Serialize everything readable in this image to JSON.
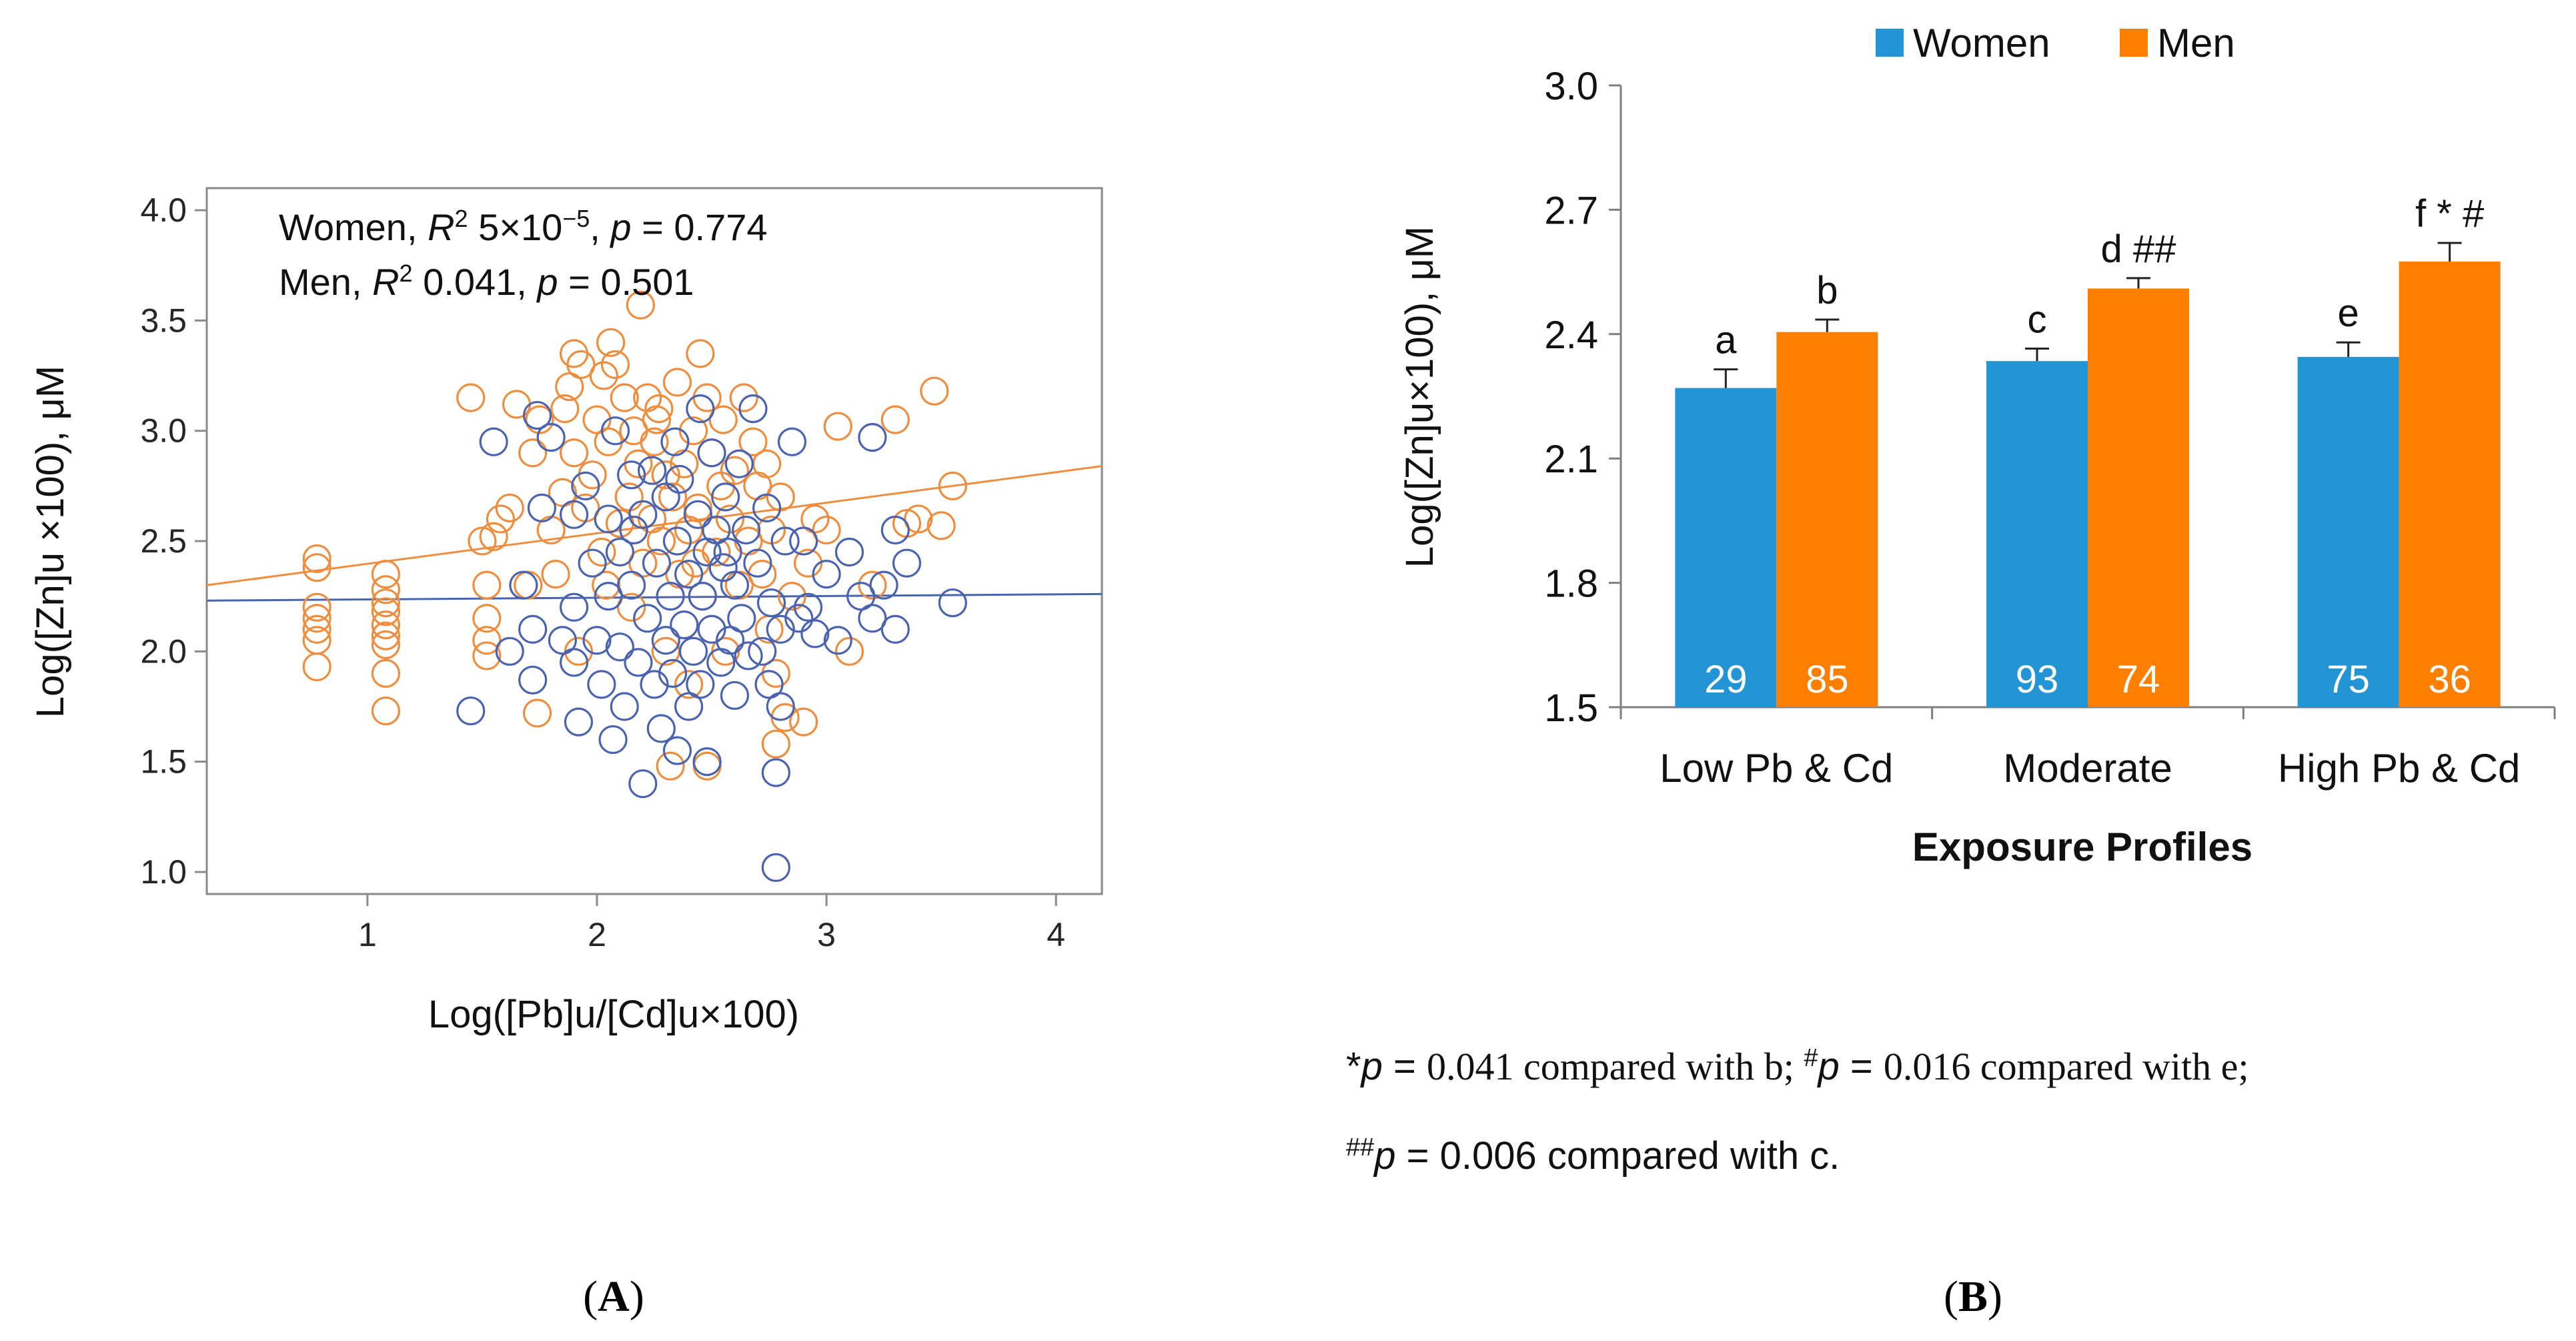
{
  "chart_data": [
    {
      "type": "scatter",
      "panel_label": "A",
      "xlabel": "Log([Pb]u/[Cd]u×100)",
      "ylabel": "Log([Zn]u ×100), μM",
      "xlim": [
        0.3,
        4.2
      ],
      "ylim": [
        0.9,
        4.1
      ],
      "xticks": [
        "1",
        "2",
        "3",
        "4"
      ],
      "yticks": [
        "1.0",
        "1.5",
        "2.0",
        "2.5",
        "3.0",
        "3.5",
        "4.0"
      ],
      "annotations": [
        {
          "group": "Women",
          "r2_label": "R",
          "r2_sup": "2",
          "r2_value": "5×10",
          "r2_exp": "−5",
          "p_label": "p",
          "p_value": "= 0.774"
        },
        {
          "group": "Men",
          "r2_label": "R",
          "r2_sup": "2",
          "r2_value": "0.041",
          "p_label": "p",
          "p_value": "= 0.501"
        }
      ],
      "series": [
        {
          "name": "Women",
          "color": "#4a63b0",
          "fit": {
            "x": [
              0.3,
              4.2
            ],
            "y": [
              2.23,
              2.26
            ]
          },
          "points": [
            [
              1.45,
              1.73
            ],
            [
              1.55,
              2.95
            ],
            [
              1.62,
              2.0
            ],
            [
              1.68,
              2.3
            ],
            [
              1.72,
              2.1
            ],
            [
              1.72,
              1.87
            ],
            [
              1.74,
              3.07
            ],
            [
              1.76,
              2.65
            ],
            [
              1.8,
              2.97
            ],
            [
              1.85,
              2.05
            ],
            [
              1.9,
              2.62
            ],
            [
              1.9,
              2.2
            ],
            [
              1.9,
              1.95
            ],
            [
              1.92,
              1.68
            ],
            [
              1.95,
              2.75
            ],
            [
              1.98,
              2.4
            ],
            [
              2.0,
              2.05
            ],
            [
              2.02,
              1.85
            ],
            [
              2.05,
              2.6
            ],
            [
              2.05,
              2.25
            ],
            [
              2.07,
              1.6
            ],
            [
              2.08,
              3.0
            ],
            [
              2.1,
              2.45
            ],
            [
              2.1,
              2.02
            ],
            [
              2.12,
              1.75
            ],
            [
              2.15,
              2.8
            ],
            [
              2.15,
              2.3
            ],
            [
              2.18,
              1.95
            ],
            [
              2.2,
              1.4
            ],
            [
              2.2,
              2.62
            ],
            [
              2.22,
              2.15
            ],
            [
              2.24,
              2.82
            ],
            [
              2.25,
              1.85
            ],
            [
              2.26,
              2.4
            ],
            [
              2.28,
              1.65
            ],
            [
              2.3,
              2.05
            ],
            [
              2.3,
              2.7
            ],
            [
              2.32,
              2.25
            ],
            [
              2.33,
              1.9
            ],
            [
              2.35,
              1.55
            ],
            [
              2.35,
              2.5
            ],
            [
              2.36,
              2.78
            ],
            [
              2.38,
              2.12
            ],
            [
              2.4,
              1.75
            ],
            [
              2.4,
              2.35
            ],
            [
              2.42,
              2.0
            ],
            [
              2.44,
              2.62
            ],
            [
              2.45,
              1.85
            ],
            [
              2.46,
              2.25
            ],
            [
              2.48,
              1.5
            ],
            [
              2.48,
              2.45
            ],
            [
              2.5,
              2.9
            ],
            [
              2.5,
              2.1
            ],
            [
              2.52,
              2.55
            ],
            [
              2.54,
              1.95
            ],
            [
              2.55,
              2.38
            ],
            [
              2.56,
              2.7
            ],
            [
              2.58,
              2.05
            ],
            [
              2.6,
              1.8
            ],
            [
              2.6,
              2.3
            ],
            [
              2.62,
              2.85
            ],
            [
              2.63,
              2.15
            ],
            [
              2.65,
              2.55
            ],
            [
              2.66,
              1.98
            ],
            [
              2.68,
              3.1
            ],
            [
              2.7,
              2.4
            ],
            [
              2.72,
              2.0
            ],
            [
              2.74,
              2.65
            ],
            [
              2.75,
              1.85
            ],
            [
              2.76,
              2.22
            ],
            [
              2.78,
              1.45
            ],
            [
              2.78,
              1.02
            ],
            [
              2.8,
              2.1
            ],
            [
              2.8,
              1.75
            ],
            [
              2.82,
              2.5
            ],
            [
              2.85,
              2.95
            ],
            [
              2.88,
              2.15
            ],
            [
              2.9,
              2.5
            ],
            [
              2.92,
              2.2
            ],
            [
              2.95,
              2.08
            ],
            [
              3.0,
              2.35
            ],
            [
              3.05,
              2.05
            ],
            [
              3.1,
              2.45
            ],
            [
              3.15,
              2.25
            ],
            [
              3.2,
              2.97
            ],
            [
              3.2,
              2.15
            ],
            [
              3.25,
              2.3
            ],
            [
              3.3,
              2.55
            ],
            [
              3.3,
              2.1
            ],
            [
              3.35,
              2.4
            ],
            [
              3.55,
              2.22
            ],
            [
              2.16,
              2.55
            ],
            [
              2.34,
              2.95
            ],
            [
              2.57,
              2.45
            ],
            [
              2.45,
              3.1
            ]
          ]
        },
        {
          "name": "Men",
          "color": "#ef8d3e",
          "fit": {
            "x": [
              0.3,
              4.2
            ],
            "y": [
              2.3,
              2.84
            ]
          },
          "points": [
            [
              0.78,
              2.42
            ],
            [
              0.78,
              2.38
            ],
            [
              0.78,
              2.2
            ],
            [
              0.78,
              2.15
            ],
            [
              0.78,
              2.1
            ],
            [
              0.78,
              2.05
            ],
            [
              0.78,
              1.93
            ],
            [
              1.08,
              2.35
            ],
            [
              1.08,
              2.28
            ],
            [
              1.08,
              2.22
            ],
            [
              1.08,
              2.18
            ],
            [
              1.08,
              2.12
            ],
            [
              1.08,
              2.07
            ],
            [
              1.08,
              2.03
            ],
            [
              1.08,
              1.9
            ],
            [
              1.08,
              1.73
            ],
            [
              1.45,
              3.15
            ],
            [
              1.5,
              2.5
            ],
            [
              1.52,
              2.3
            ],
            [
              1.52,
              2.15
            ],
            [
              1.52,
              2.05
            ],
            [
              1.52,
              1.98
            ],
            [
              1.55,
              2.52
            ],
            [
              1.58,
              2.6
            ],
            [
              1.62,
              2.65
            ],
            [
              1.65,
              3.12
            ],
            [
              1.7,
              2.3
            ],
            [
              1.72,
              2.9
            ],
            [
              1.74,
              1.72
            ],
            [
              1.75,
              3.05
            ],
            [
              1.8,
              2.55
            ],
            [
              1.82,
              2.35
            ],
            [
              1.85,
              2.72
            ],
            [
              1.86,
              3.1
            ],
            [
              1.88,
              3.2
            ],
            [
              1.9,
              3.35
            ],
            [
              1.9,
              2.9
            ],
            [
              1.92,
              2.0
            ],
            [
              1.93,
              3.3
            ],
            [
              1.95,
              2.65
            ],
            [
              1.98,
              2.8
            ],
            [
              2.0,
              3.05
            ],
            [
              2.02,
              2.45
            ],
            [
              2.04,
              2.3
            ],
            [
              2.05,
              2.95
            ],
            [
              2.06,
              3.4
            ],
            [
              2.08,
              3.3
            ],
            [
              2.1,
              2.58
            ],
            [
              2.12,
              3.15
            ],
            [
              2.14,
              2.7
            ],
            [
              2.15,
              2.2
            ],
            [
              2.16,
              3.0
            ],
            [
              2.18,
              2.85
            ],
            [
              2.19,
              3.57
            ],
            [
              2.2,
              2.4
            ],
            [
              2.22,
              3.15
            ],
            [
              2.24,
              2.6
            ],
            [
              2.25,
              2.95
            ],
            [
              2.26,
              3.05
            ],
            [
              2.28,
              2.5
            ],
            [
              2.3,
              2.8
            ],
            [
              2.3,
              2.0
            ],
            [
              2.32,
              1.48
            ],
            [
              2.33,
              2.7
            ],
            [
              2.35,
              3.22
            ],
            [
              2.36,
              2.35
            ],
            [
              2.38,
              2.85
            ],
            [
              2.4,
              2.55
            ],
            [
              2.4,
              1.85
            ],
            [
              2.42,
              3.0
            ],
            [
              2.44,
              2.65
            ],
            [
              2.45,
              3.35
            ],
            [
              2.46,
              2.25
            ],
            [
              2.48,
              1.48
            ],
            [
              2.48,
              3.15
            ],
            [
              2.5,
              2.9
            ],
            [
              2.52,
              2.45
            ],
            [
              2.54,
              2.75
            ],
            [
              2.55,
              3.05
            ],
            [
              2.56,
              2.0
            ],
            [
              2.58,
              2.6
            ],
            [
              2.6,
              2.82
            ],
            [
              2.62,
              2.3
            ],
            [
              2.64,
              3.15
            ],
            [
              2.66,
              2.5
            ],
            [
              2.68,
              2.95
            ],
            [
              2.7,
              2.75
            ],
            [
              2.72,
              2.35
            ],
            [
              2.74,
              2.85
            ],
            [
              2.75,
              2.1
            ],
            [
              2.76,
              2.55
            ],
            [
              2.78,
              1.9
            ],
            [
              2.78,
              1.58
            ],
            [
              2.8,
              2.7
            ],
            [
              2.82,
              1.7
            ],
            [
              2.85,
              2.25
            ],
            [
              2.9,
              1.68
            ],
            [
              2.92,
              2.4
            ],
            [
              2.95,
              2.6
            ],
            [
              3.0,
              2.55
            ],
            [
              3.05,
              3.02
            ],
            [
              3.1,
              2.0
            ],
            [
              3.2,
              2.3
            ],
            [
              3.3,
              3.05
            ],
            [
              3.35,
              2.58
            ],
            [
              3.4,
              2.6
            ],
            [
              3.47,
              3.18
            ],
            [
              3.5,
              2.57
            ],
            [
              3.55,
              2.75
            ],
            [
              2.03,
              3.25
            ],
            [
              2.27,
              3.1
            ],
            [
              2.43,
              2.4
            ]
          ]
        }
      ]
    },
    {
      "type": "bar",
      "panel_label": "B",
      "title": "",
      "xlabel": "Exposure Profiles",
      "ylabel": "Log([Zn]u×100), μM",
      "ylim": [
        1.5,
        3.0
      ],
      "yticks": [
        "1.5",
        "1.8",
        "2.1",
        "2.4",
        "2.7",
        "3.0"
      ],
      "categories": [
        "Low Pb & Cd",
        "Moderate",
        "High Pb & Cd"
      ],
      "legend_position": "top-center",
      "series": [
        {
          "name": "Women",
          "color": "#2394d4",
          "values": [
            2.27,
            2.335,
            2.345
          ],
          "errors": [
            0.045,
            0.03,
            0.035
          ],
          "n": [
            "29",
            "93",
            "75"
          ],
          "labels": [
            "a",
            "c",
            "e"
          ]
        },
        {
          "name": "Men",
          "color": "#fe7f00",
          "values": [
            2.405,
            2.51,
            2.575
          ],
          "errors": [
            0.03,
            0.025,
            0.045
          ],
          "n": [
            "85",
            "74",
            "36"
          ],
          "labels": [
            "b",
            "d ##",
            "f * #"
          ]
        }
      ],
      "footnotes": {
        "line1": {
          "m1": "*",
          "p1": "p",
          "t1": " = ",
          "v1": "0.041 compared with b; ",
          "m2": "#",
          "p2": "p",
          "t2": " = ",
          "v2": "0.016 compared with e;"
        },
        "line2": {
          "m": "##",
          "p": "p",
          "t": " = 0.006 compared with c."
        }
      }
    }
  ]
}
